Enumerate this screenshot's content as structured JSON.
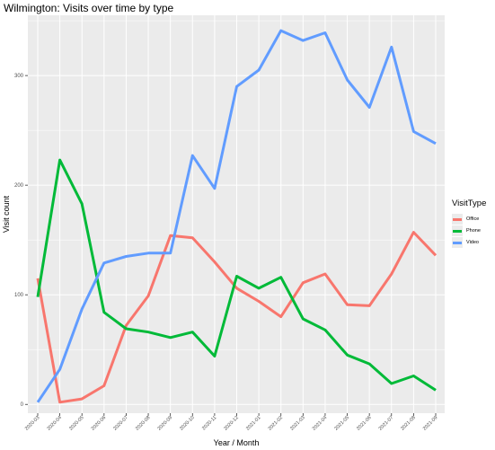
{
  "chart_data": {
    "type": "line",
    "title": "Wilmington: Visits over time by type",
    "xlabel": "Year / Month",
    "ylabel": "Visit count",
    "legend_title": "VisitType",
    "legend_position": "right",
    "grid": true,
    "ylim": [
      -8,
      355
    ],
    "y_ticks": [
      0,
      100,
      200,
      300
    ],
    "categories": [
      "2020-03",
      "2020-04",
      "2020-05",
      "2020-06",
      "2020-07",
      "2020-08",
      "2020-09",
      "2020-10",
      "2020-11",
      "2020-12",
      "2021-01",
      "2021-02",
      "2021-03",
      "2021-04",
      "2021-05",
      "2021-06",
      "2021-07",
      "2021-08",
      "2021-09"
    ],
    "series": [
      {
        "name": "Office",
        "color": "#f8766d",
        "values": [
          115,
          2,
          5,
          17,
          72,
          99,
          154,
          152,
          130,
          106,
          94,
          80,
          111,
          119,
          91,
          90,
          119,
          157,
          136
        ]
      },
      {
        "name": "Phone",
        "color": "#00ba38",
        "values": [
          98,
          223,
          183,
          84,
          69,
          66,
          61,
          66,
          44,
          117,
          106,
          116,
          78,
          68,
          45,
          37,
          19,
          26,
          13
        ]
      },
      {
        "name": "Video",
        "color": "#619cff",
        "values": [
          2,
          32,
          87,
          129,
          135,
          138,
          138,
          227,
          197,
          290,
          305,
          341,
          332,
          339,
          296,
          271,
          326,
          249,
          238
        ]
      }
    ]
  }
}
